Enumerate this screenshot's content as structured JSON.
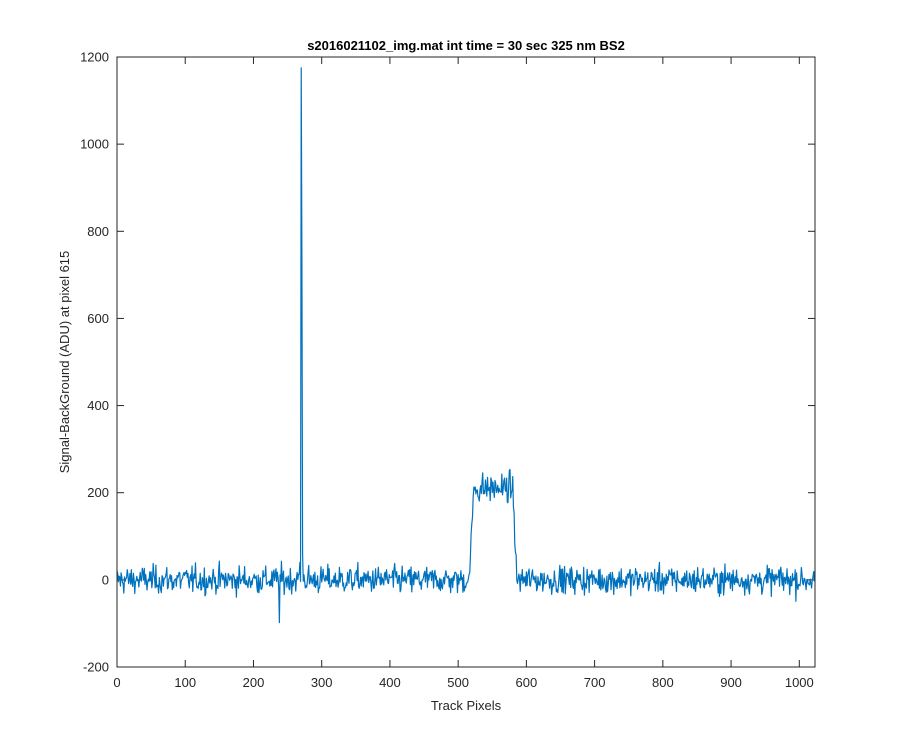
{
  "chart_data": {
    "type": "line",
    "title": "s2016021102_img.mat int time = 30 sec  325 nm BS2",
    "xlabel": "Track Pixels",
    "ylabel": "Signal-BackGround (ADU) at pixel 615",
    "xlim": [
      0,
      1023
    ],
    "ylim": [
      -200,
      1200
    ],
    "xticks": [
      0,
      100,
      200,
      300,
      400,
      500,
      600,
      700,
      800,
      900,
      1000
    ],
    "yticks": [
      -200,
      0,
      200,
      400,
      600,
      800,
      1000,
      1200
    ],
    "grid": false,
    "legend": "none",
    "line_color": "#0072bd",
    "series": [
      {
        "x_start": 0,
        "x_step": 1,
        "points": 1024,
        "noise_band_sd": 22,
        "features": [
          {
            "type": "spike",
            "x": 268,
            "value": 40
          },
          {
            "type": "spike",
            "x": 270,
            "value": 1175
          },
          {
            "type": "spike",
            "x": 271,
            "value": 730
          },
          {
            "type": "spike",
            "x": 272,
            "value": 60
          },
          {
            "type": "spike",
            "x": 238,
            "value": -98
          },
          {
            "type": "plateau",
            "x_from": 523,
            "x_to": 580,
            "level": 210
          },
          {
            "type": "step_edge",
            "x_from": 516,
            "x_to": 523
          },
          {
            "type": "step_edge",
            "x_from": 580,
            "x_to": 586
          }
        ]
      }
    ]
  }
}
